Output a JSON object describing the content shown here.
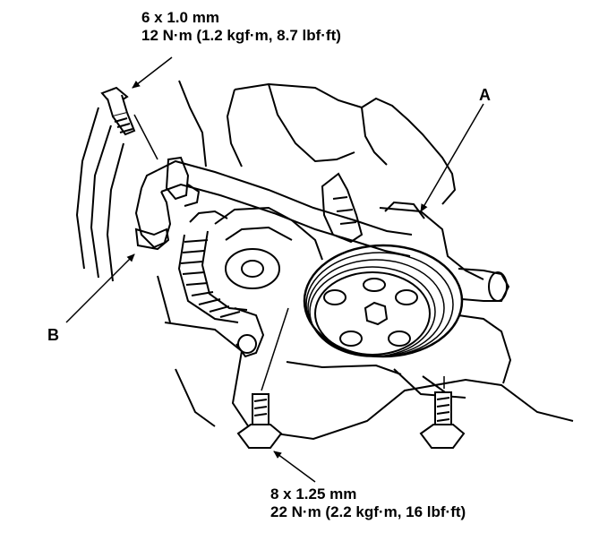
{
  "specs": {
    "top": {
      "size": "6 x 1.0 mm",
      "torque": "12 N·m (1.2 kgf·m, 8.7 lbf·ft)"
    },
    "bottom": {
      "size": "8 x 1.25 mm",
      "torque": "22 N·m (2.2 kgf·m, 16 lbf·ft)"
    }
  },
  "callouts": {
    "a": "A",
    "b": "B"
  }
}
